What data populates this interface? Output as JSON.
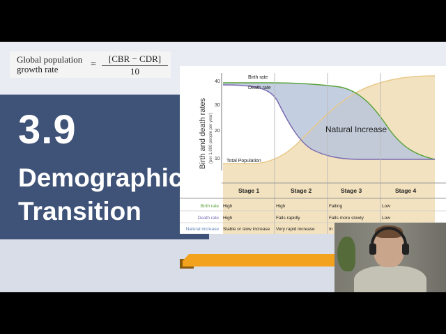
{
  "formula": {
    "left_line1": "Global population",
    "left_line2": "growth rate",
    "equals": "=",
    "numerator": "[CBR − CDR]",
    "denominator": "10"
  },
  "title": {
    "number": "3.9",
    "line1": "Demographic",
    "line2": "Transition"
  },
  "chart": {
    "ylabel": "Birth and death rates",
    "ylabel_sub": "(per 1,000 people per year)",
    "y_ticks": [
      "40",
      "30",
      "20",
      "10"
    ],
    "series_labels": {
      "birth": "Birth rate",
      "death": "Death rate",
      "population": "Total Population",
      "increase": "Natural Increase"
    },
    "stages": [
      "Stage 1",
      "Stage 2",
      "Stage 3",
      "Stage 4"
    ],
    "rows": [
      {
        "label": "Birth rate",
        "cells": [
          "High",
          "High",
          "Falling",
          "Low"
        ]
      },
      {
        "label": "Death rate",
        "cells": [
          "High",
          "Falls rapidly",
          "Falls more slowly",
          "Low"
        ]
      },
      {
        "label": "Natural increase",
        "cells": [
          "Stable or slow increase",
          "Very rapid increase",
          "In",
          ""
        ]
      }
    ],
    "colors": {
      "birth": "#5aa23a",
      "death": "#7a6bb0",
      "increase_fill": "#b8c6dc",
      "population_fill": "#f3e2bf",
      "population_line": "#e8c98a"
    }
  }
}
